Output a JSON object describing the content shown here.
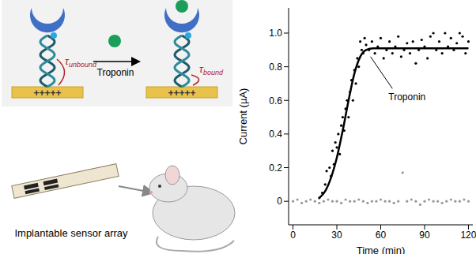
{
  "chart_data": {
    "type": "scatter",
    "xlabel": "Time (min)",
    "ylabel": "Current (µA)",
    "xlim": [
      -3,
      123
    ],
    "xticks": [
      0,
      30,
      60,
      90,
      120
    ],
    "ylim": [
      -0.14,
      1.15
    ],
    "yticks": [
      0,
      0.2,
      0.4,
      0.6,
      0.8,
      {
        "value": 1,
        "label": "1.0"
      }
    ],
    "grid": false,
    "annotations": [
      {
        "text": "Troponin"
      }
    ],
    "series": [
      {
        "type": "scatter",
        "color": "#000000",
        "x": [
          18,
          20,
          22,
          23,
          25,
          26,
          27,
          28,
          29,
          30,
          31,
          32,
          33,
          34,
          35,
          36,
          37,
          38,
          39,
          40,
          41,
          42,
          43,
          44,
          45,
          46,
          47,
          48,
          49,
          50,
          52,
          54,
          56,
          58,
          60,
          62,
          64,
          66,
          68,
          70,
          72,
          74,
          76,
          78,
          80,
          82,
          84,
          86,
          88,
          90,
          92,
          94,
          96,
          98,
          100,
          102,
          104,
          106,
          108,
          110,
          112,
          114,
          116,
          118,
          120
        ],
        "values": [
          0.02,
          0.05,
          0.1,
          0.18,
          0.2,
          0.15,
          0.3,
          0.22,
          0.35,
          0.32,
          0.4,
          0.28,
          0.45,
          0.5,
          0.42,
          0.55,
          0.6,
          0.5,
          0.65,
          0.72,
          0.6,
          0.78,
          0.7,
          0.85,
          0.8,
          0.95,
          0.9,
          0.88,
          0.97,
          0.93,
          0.9,
          0.95,
          0.88,
          0.92,
          0.97,
          0.85,
          0.9,
          0.95,
          0.88,
          0.92,
          0.98,
          0.86,
          0.9,
          0.94,
          0.88,
          0.95,
          0.82,
          0.9,
          0.96,
          0.92,
          0.85,
          0.98,
          1.0,
          0.9,
          0.95,
          0.88,
          1.0,
          0.92,
          0.97,
          0.9,
          0.94,
          1.0,
          0.98,
          0.88,
          0.95
        ]
      },
      {
        "type": "scatter",
        "color": "#999999",
        "x": [
          0,
          3,
          6,
          9,
          12,
          15,
          18,
          21,
          24,
          27,
          30,
          33,
          36,
          39,
          42,
          45,
          48,
          51,
          54,
          57,
          60,
          63,
          66,
          69,
          72,
          75,
          78,
          81,
          84,
          87,
          90,
          93,
          96,
          99,
          102,
          105,
          108,
          111,
          114,
          117,
          120
        ],
        "values": [
          0.0,
          0.01,
          -0.01,
          0.0,
          0.01,
          0.0,
          -0.01,
          0.0,
          0.01,
          0.0,
          0.0,
          -0.01,
          0.01,
          0.0,
          0.0,
          0.01,
          0.0,
          -0.01,
          0.0,
          0.0,
          0.01,
          0.0,
          0.0,
          -0.01,
          0.0,
          0.17,
          0.0,
          0.01,
          0.0,
          -0.02,
          0.0,
          0.01,
          0.0,
          0.0,
          -0.01,
          0.0,
          0.01,
          0.0,
          0.0,
          0.01,
          0.0
        ]
      },
      {
        "type": "line",
        "color": "#000000",
        "x": [
          18,
          22,
          26,
          30,
          34,
          38,
          42,
          46,
          50,
          55,
          60,
          70,
          80,
          90,
          100,
          110,
          120
        ],
        "values": [
          0.02,
          0.06,
          0.14,
          0.26,
          0.42,
          0.6,
          0.76,
          0.86,
          0.9,
          0.91,
          0.91,
          0.91,
          0.91,
          0.91,
          0.91,
          0.91,
          0.91
        ]
      }
    ]
  },
  "diagram": {
    "binding_arrow_label": "Troponin",
    "electrode_charge": "+++++",
    "tau_unbound": {
      "symbol": "τ",
      "subscript": "unbound"
    },
    "tau_bound": {
      "symbol": "τ",
      "subscript": "bound"
    },
    "sensor_label": "Implantable sensor array"
  }
}
